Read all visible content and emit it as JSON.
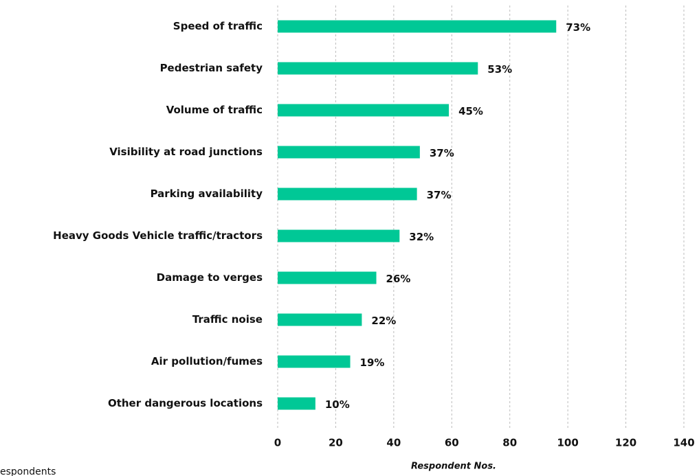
{
  "chart_data": {
    "type": "bar",
    "orientation": "horizontal",
    "x_label": "Respondent Nos.",
    "footnote": "espondents",
    "categories": [
      "Speed of traffic",
      "Pedestrian safety",
      "Volume of traffic",
      "Visibility at road junctions",
      "Parking availability",
      "Heavy Goods Vehicle traffic/tractors",
      "Damage to verges",
      "Traffic noise",
      "Air pollution/fumes",
      "Other dangerous locations"
    ],
    "values": [
      96,
      69,
      59,
      49,
      48,
      42,
      34,
      29,
      25,
      13
    ],
    "value_labels": [
      "73%",
      "53%",
      "45%",
      "37%",
      "37%",
      "32%",
      "26%",
      "22%",
      "19%",
      "10%"
    ],
    "color": "#00c896",
    "xlim": [
      0,
      140
    ],
    "xticks": [
      0,
      20,
      40,
      60,
      80,
      100,
      120,
      140
    ],
    "grid": true
  }
}
